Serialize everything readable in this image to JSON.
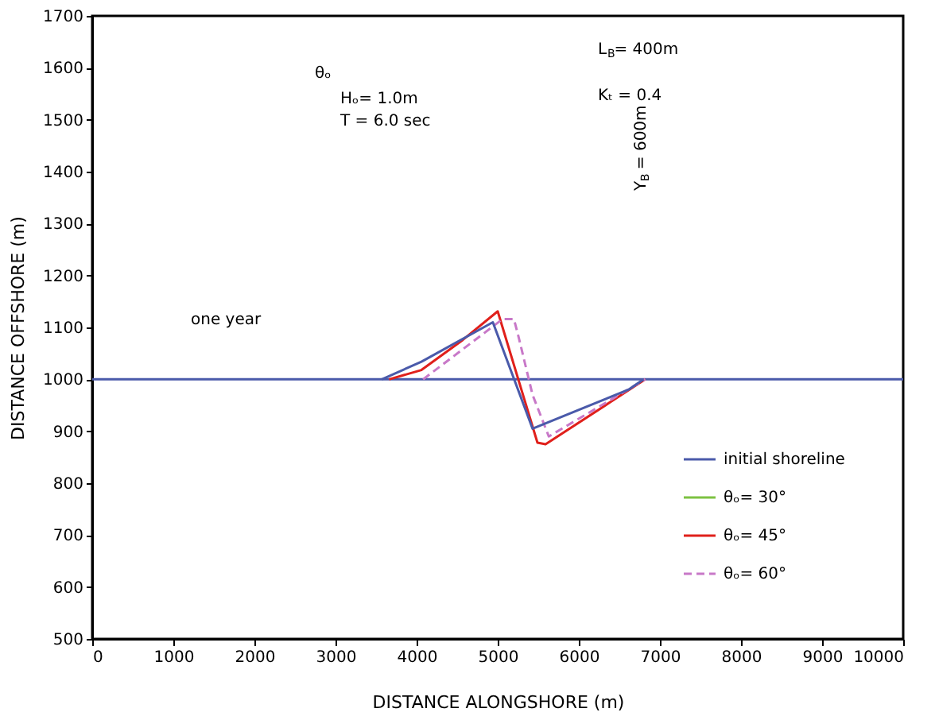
{
  "chart_data": {
    "type": "line",
    "xlabel": "DISTANCE ALONGSHORE (m)",
    "ylabel": "DISTANCE OFFSHORE (m)",
    "xlim": [
      0,
      10000
    ],
    "ylim": [
      500,
      1700
    ],
    "xticks": [
      0,
      1000,
      2000,
      3000,
      4000,
      5000,
      6000,
      7000,
      8000,
      9000,
      10000
    ],
    "yticks": [
      500,
      600,
      700,
      800,
      900,
      1000,
      1100,
      1200,
      1300,
      1400,
      1500,
      1600,
      1700
    ],
    "grid": false,
    "legend": "bottom right",
    "marker": "none",
    "series": [
      {
        "name": "initial shoreline",
        "color": "#4a5aaa",
        "line_style": "solid",
        "x": [
          0,
          10000
        ],
        "values": [
          1000,
          1000
        ]
      },
      {
        "name": "θₒ= 30°",
        "color": "#7dc242",
        "line_style": "solid"
      },
      {
        "name": "θₒ= 45°",
        "color": "#e0201b",
        "line_style": "solid",
        "x": [
          3660,
          4060,
          4570,
          5000,
          5490,
          5590,
          6820
        ],
        "values": [
          1000,
          1018,
          1076,
          1131,
          878,
          875,
          1000
        ]
      },
      {
        "name": "θₒ= 60°",
        "color": "#c878c8",
        "line_style": "dashed",
        "x": [
          4080,
          5060,
          5200,
          5260,
          5430,
          5630,
          6820
        ],
        "values": [
          1000,
          1116,
          1116,
          1080,
          970,
          890,
          1000
        ]
      },
      {
        "color": "#4a5aaa",
        "line_style": "solid",
        "x": [
          3570,
          4060,
          4940,
          5430,
          6610,
          6800
        ],
        "values": [
          1000,
          1034,
          1110,
          905,
          980,
          1000
        ]
      }
    ],
    "annotations": [
      "one year",
      "θₒ",
      "Hₒ= 1.0m",
      "T = 6.0 sec",
      "L$_{B}$= 400m",
      "Kₜ = 0.4",
      "Y$_{B}$ = 600m"
    ]
  }
}
